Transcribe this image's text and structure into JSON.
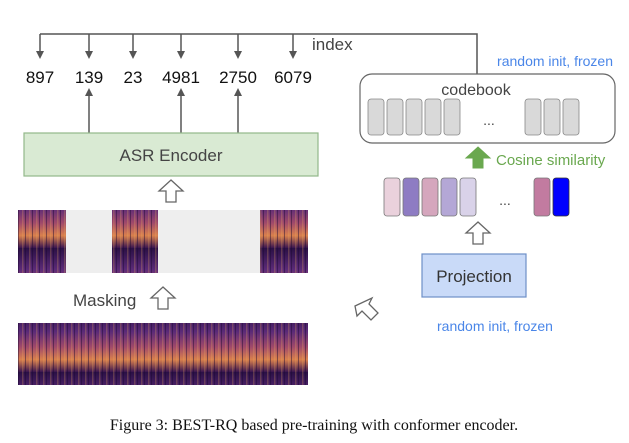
{
  "top_index_label": "index",
  "indices": [
    "897",
    "139",
    "23",
    "4981",
    "2750",
    "6079"
  ],
  "encoder_label": "ASR Encoder",
  "masking_label": "Masking",
  "codebook_label": "codebook",
  "codebook_note": "random init, frozen",
  "codebook_ellipsis": "...",
  "similarity_label": "Cosine similarity",
  "vector_ellipsis": "...",
  "projection_label": "Projection",
  "projection_note": "random init, frozen",
  "caption": "Figure 3: BEST-RQ based pre-training with conformer encoder.",
  "colors": {
    "encoder_fill": "#d9ead3",
    "encoder_stroke": "#93b88a",
    "projection_fill": "#c9daf8",
    "projection_stroke": "#6d8fc7",
    "note_text": "#4a86e8",
    "similarity_arrow": "#6aa84f",
    "similarity_text": "#6aa84f",
    "mask_fill": "#eeeeee",
    "codebook_entry": "#d9d9d9",
    "vector_colors": [
      "#ead1dc",
      "#8e7cc3",
      "#d5a6bd",
      "#b4a7d6",
      "#d9d2e9",
      "#c27ba0",
      "#0000ff"
    ]
  }
}
